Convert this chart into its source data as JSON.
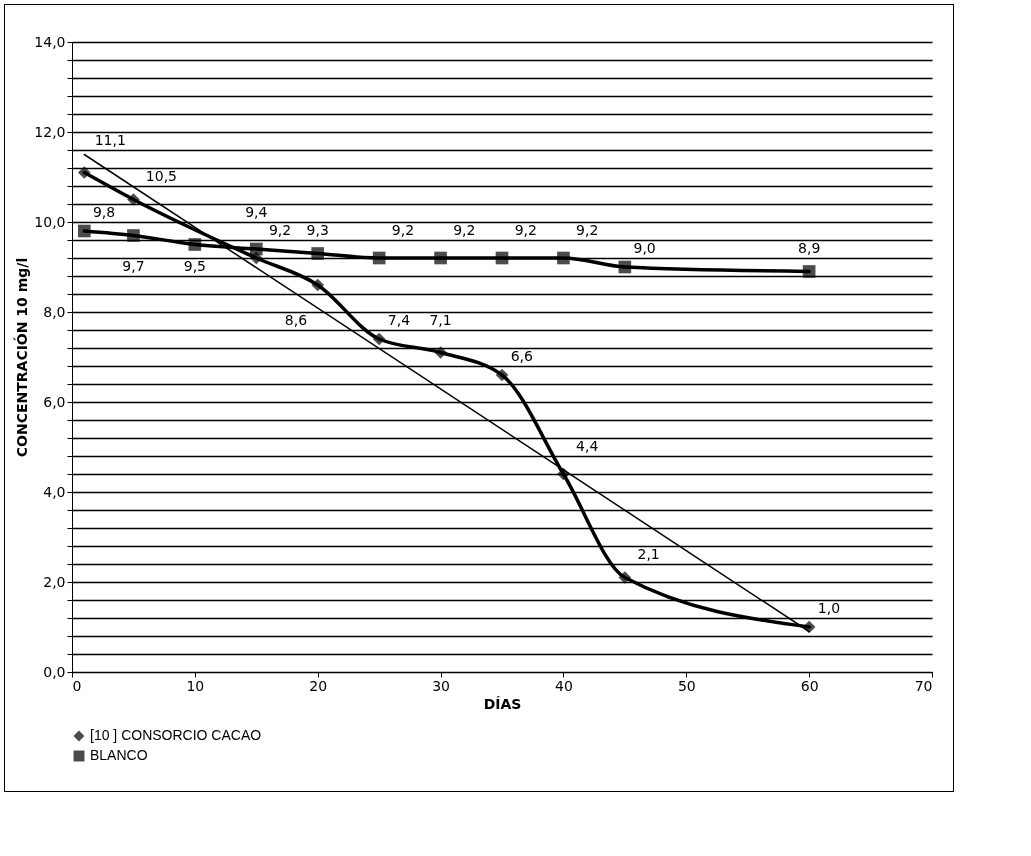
{
  "chart_data": {
    "type": "line",
    "xlabel": "DÍAS",
    "ylabel": "CONCENTRACIÓN 10 mg/l",
    "xlim": [
      0,
      70
    ],
    "xticks": [
      0,
      10,
      20,
      30,
      40,
      50,
      60,
      70
    ],
    "ylim": [
      0,
      14
    ],
    "yticks": [
      {
        "value": 0,
        "label": "0,0"
      },
      {
        "value": 0.4,
        "label": null
      },
      {
        "value": 0.8,
        "label": null
      },
      {
        "value": 1.2,
        "label": null
      },
      {
        "value": 1.6,
        "label": null
      },
      {
        "value": 2,
        "label": "2,0"
      },
      {
        "value": 2.4,
        "label": null
      },
      {
        "value": 2.8,
        "label": null
      },
      {
        "value": 3.2,
        "label": null
      },
      {
        "value": 3.6,
        "label": null
      },
      {
        "value": 4,
        "label": "4,0"
      },
      {
        "value": 4.4,
        "label": null
      },
      {
        "value": 4.8,
        "label": null
      },
      {
        "value": 5.2,
        "label": null
      },
      {
        "value": 5.6,
        "label": null
      },
      {
        "value": 6,
        "label": "6,0"
      },
      {
        "value": 6.4,
        "label": null
      },
      {
        "value": 6.8,
        "label": null
      },
      {
        "value": 7.2,
        "label": null
      },
      {
        "value": 7.6,
        "label": null
      },
      {
        "value": 8,
        "label": "8,0"
      },
      {
        "value": 8.4,
        "label": null
      },
      {
        "value": 8.8,
        "label": null
      },
      {
        "value": 9.2,
        "label": null
      },
      {
        "value": 9.6,
        "label": null
      },
      {
        "value": 10,
        "label": "10,0"
      },
      {
        "value": 10.4,
        "label": null
      },
      {
        "value": 10.8,
        "label": null
      },
      {
        "value": 11.2,
        "label": null
      },
      {
        "value": 11.6,
        "label": null
      },
      {
        "value": 12,
        "label": "12,0"
      },
      {
        "value": 12.4,
        "label": null
      },
      {
        "value": 12.8,
        "label": null
      },
      {
        "value": 13.2,
        "label": null
      },
      {
        "value": 13.6,
        "label": null
      },
      {
        "value": 14,
        "label": "14,0"
      }
    ],
    "grid": "y",
    "legend": "bottom",
    "series": [
      {
        "name": "[10 ] CONSORCIO CACAO",
        "color": "#000000",
        "marker": "diamond",
        "x": [
          1,
          5,
          15,
          20,
          25,
          30,
          35,
          40,
          45,
          60
        ],
        "values": [
          11.1,
          10.5,
          9.2,
          8.6,
          7.4,
          7.1,
          6.6,
          4.4,
          2.1,
          1.0
        ],
        "value_labels": [
          "11,1",
          "10,5",
          "9,2",
          "8,6",
          "7,4",
          "7,1",
          "6,6",
          "4,4",
          "2,1",
          "1,0"
        ]
      },
      {
        "name": "BLANCO",
        "color": "#000000",
        "marker": "square",
        "x": [
          1,
          5,
          10,
          15,
          20,
          25,
          30,
          35,
          40,
          45,
          60
        ],
        "values": [
          9.8,
          9.7,
          9.5,
          9.4,
          9.3,
          9.2,
          9.2,
          9.2,
          9.2,
          9.0,
          8.9
        ],
        "value_labels": [
          "9,8",
          "9,7",
          "9,5",
          "9,4",
          "9,3",
          "9,2",
          "9,2",
          "9,2",
          "9,2",
          "9,0",
          "8,9"
        ]
      },
      {
        "type": "line",
        "color": "#000000",
        "marker": "none",
        "x": [
          1,
          60
        ],
        "values": [
          11.5,
          0.9
        ]
      }
    ]
  }
}
